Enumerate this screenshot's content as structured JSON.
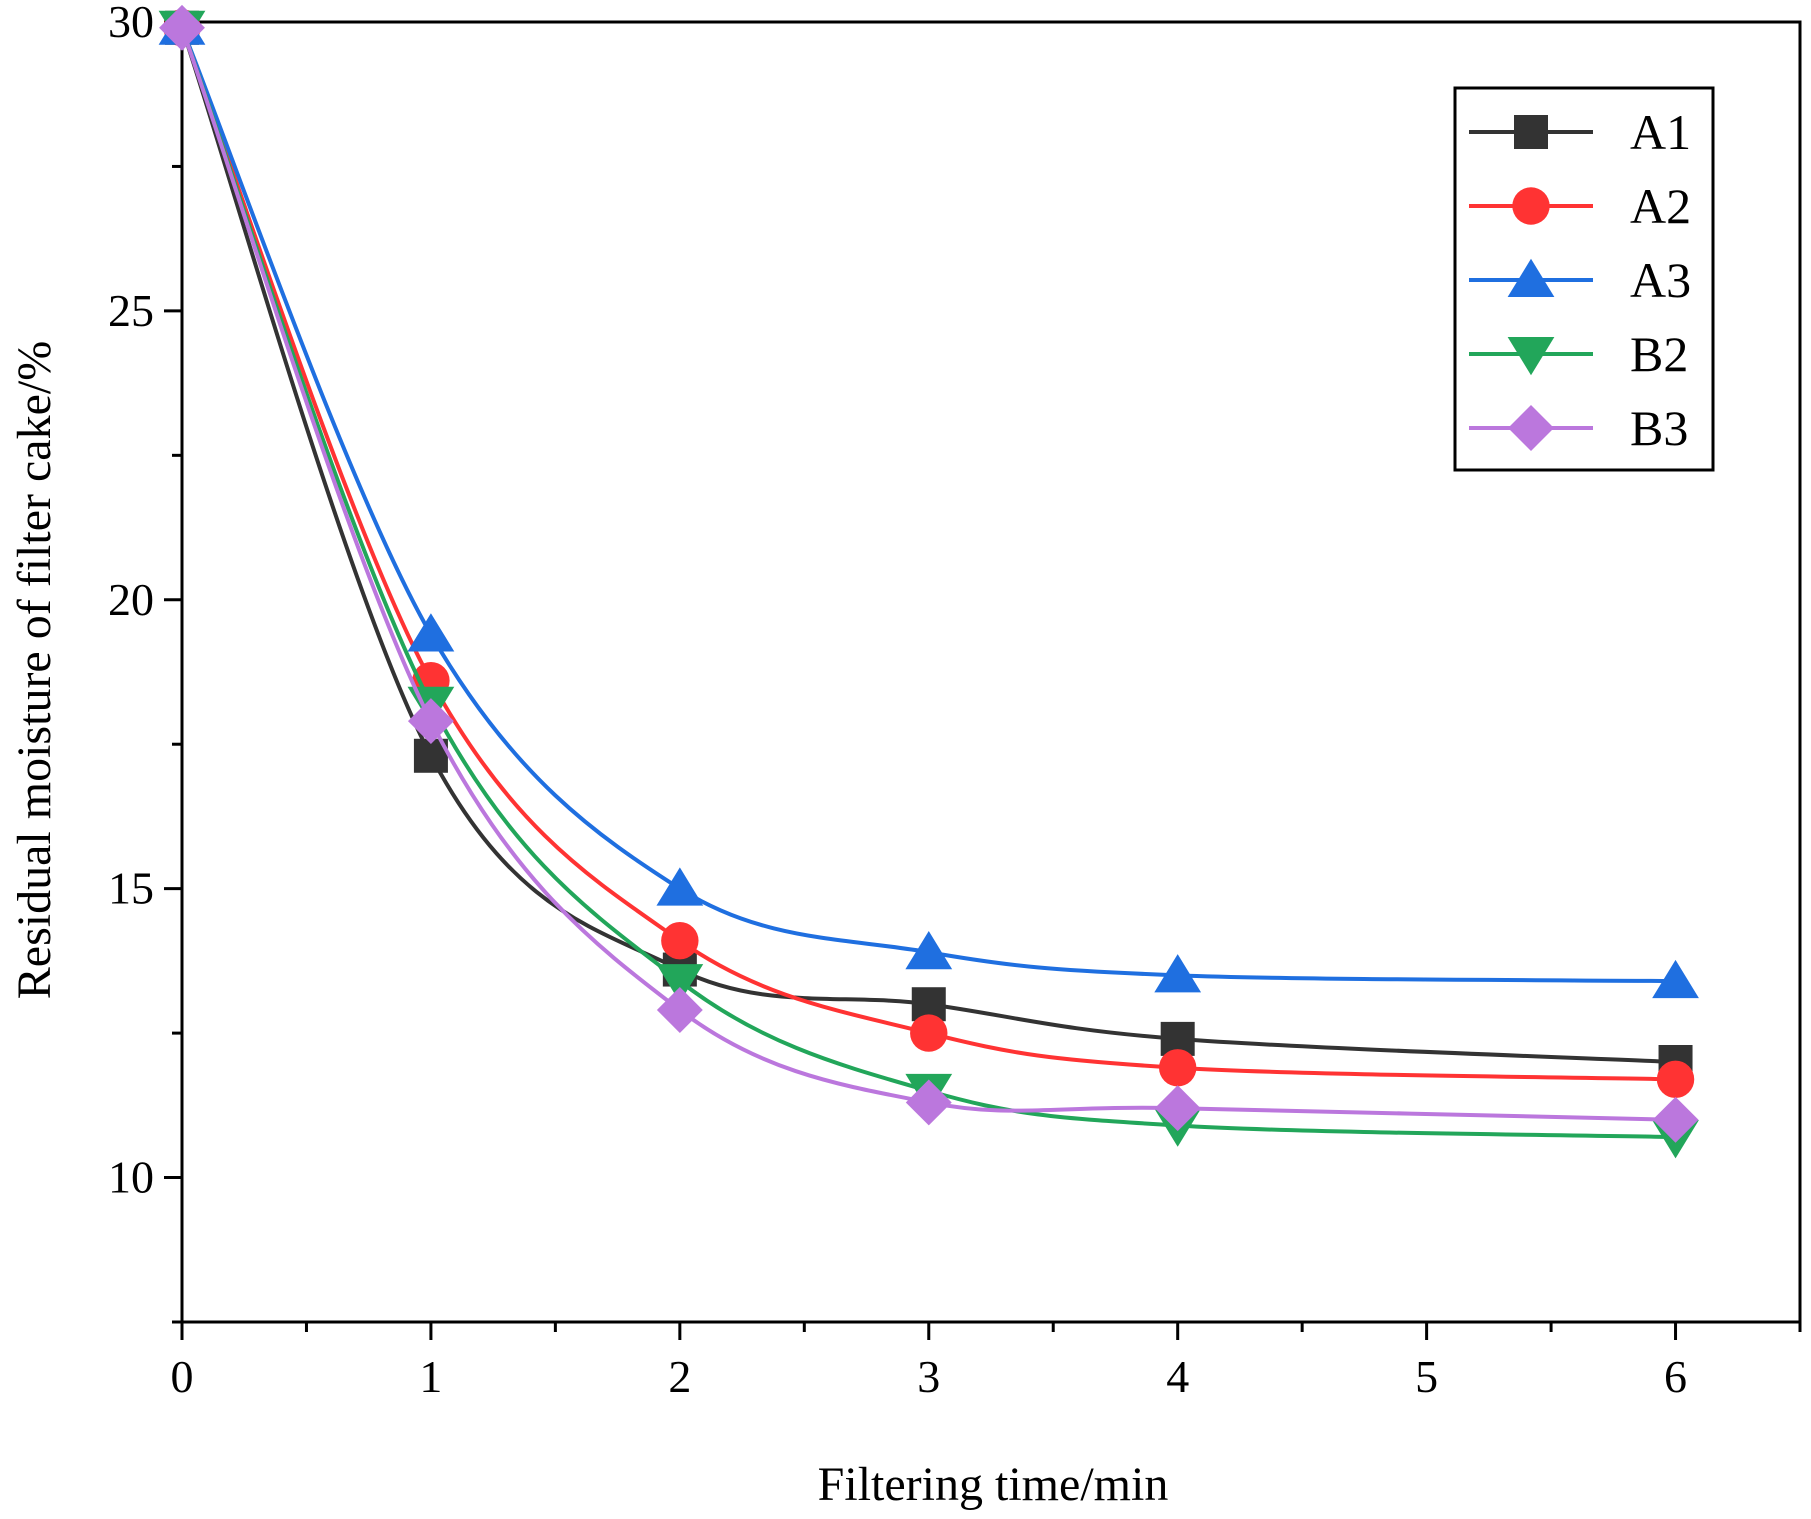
{
  "chart_data": {
    "type": "line",
    "title": "",
    "xlabel": "Filtering time/min",
    "ylabel": "Residual moisture of filter cake/%",
    "xlim": [
      0,
      6.5
    ],
    "ylim": [
      7.5,
      30
    ],
    "xticks": [
      0,
      1,
      2,
      3,
      4,
      5,
      6
    ],
    "yticks": [
      10,
      15,
      20,
      25,
      30
    ],
    "x": [
      0,
      1,
      2,
      3,
      4,
      6
    ],
    "legend_position": "top-right",
    "series": [
      {
        "name": "A1",
        "color": "#333333",
        "marker": "square",
        "values": [
          29.9,
          17.3,
          13.6,
          13.0,
          12.4,
          12.0
        ]
      },
      {
        "name": "A2",
        "color": "#ff3333",
        "marker": "circle",
        "values": [
          29.9,
          18.6,
          14.1,
          12.5,
          11.9,
          11.7
        ]
      },
      {
        "name": "A3",
        "color": "#1f6fe0",
        "marker": "triangle-up",
        "values": [
          29.9,
          19.4,
          15.0,
          13.9,
          13.5,
          13.4
        ]
      },
      {
        "name": "B2",
        "color": "#22a65a",
        "marker": "triangle-down",
        "values": [
          29.9,
          18.2,
          13.4,
          11.5,
          10.9,
          10.7
        ]
      },
      {
        "name": "B3",
        "color": "#bb77dd",
        "marker": "diamond",
        "values": [
          29.9,
          17.9,
          12.9,
          11.3,
          11.2,
          11.0
        ]
      }
    ]
  }
}
